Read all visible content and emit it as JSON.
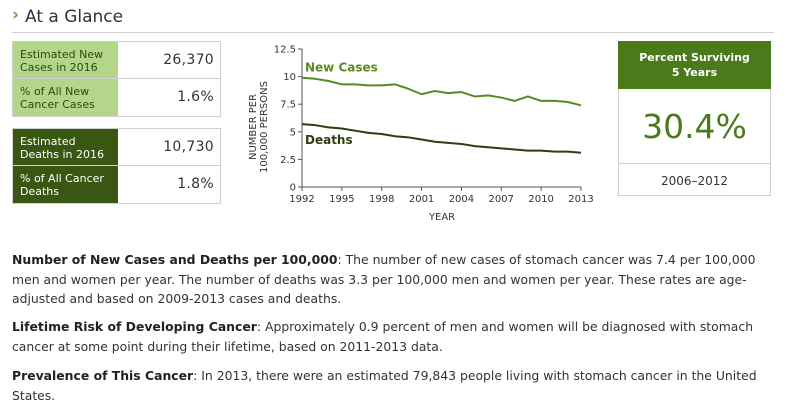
{
  "header": {
    "chevron": "›",
    "title": "At a Glance"
  },
  "stats": [
    {
      "label": "Estimated New Cases in 2016",
      "value": "26,370",
      "style": "green"
    },
    {
      "label": "% of All New Cancer Cases",
      "value": "1.6%",
      "style": "green"
    },
    {
      "label": "Estimated Deaths in 2016",
      "value": "10,730",
      "style": "dark"
    },
    {
      "label": "% of All Cancer Deaths",
      "value": "1.8%",
      "style": "dark"
    }
  ],
  "survival": {
    "title_line1": "Percent Surviving",
    "title_line2": "5 Years",
    "percent": "30.4%",
    "years": "2006–2012"
  },
  "colors": {
    "green_light": "#b3d68a",
    "green_dark": "#3a5613",
    "new_cases_line": "#5a8a22",
    "deaths_line": "#2e3d12",
    "accent": "#4b7a1b"
  },
  "chart_data": {
    "type": "line",
    "xlabel": "YEAR",
    "ylabel_line1": "NUMBER PER",
    "ylabel_line2": "100,000 PERSONS",
    "xlim": [
      1992,
      2013
    ],
    "ylim": [
      0,
      12.5
    ],
    "x_ticks": [
      1992,
      1995,
      1998,
      2001,
      2004,
      2007,
      2010,
      2013
    ],
    "y_ticks": [
      0,
      2.5,
      5,
      7.5,
      10,
      12.5
    ],
    "x": [
      1992,
      1993,
      1994,
      1995,
      1996,
      1997,
      1998,
      1999,
      2000,
      2001,
      2002,
      2003,
      2004,
      2005,
      2006,
      2007,
      2008,
      2009,
      2010,
      2011,
      2012,
      2013
    ],
    "series": [
      {
        "name": "New Cases",
        "values": [
          9.9,
          9.8,
          9.6,
          9.3,
          9.3,
          9.2,
          9.2,
          9.3,
          8.9,
          8.4,
          8.7,
          8.5,
          8.6,
          8.2,
          8.3,
          8.1,
          7.8,
          8.2,
          7.8,
          7.8,
          7.7,
          7.4
        ]
      },
      {
        "name": "Deaths",
        "values": [
          5.7,
          5.6,
          5.4,
          5.3,
          5.1,
          4.9,
          4.8,
          4.6,
          4.5,
          4.3,
          4.1,
          4.0,
          3.9,
          3.7,
          3.6,
          3.5,
          3.4,
          3.3,
          3.3,
          3.2,
          3.2,
          3.1
        ]
      }
    ]
  },
  "paragraphs": [
    {
      "heading": "Number of New Cases and Deaths per 100,000",
      "text": ": The number of new cases of stomach cancer was 7.4 per 100,000 men and women per year. The number of deaths was 3.3 per 100,000 men and women per year. These rates are age-adjusted and based on 2009-2013 cases and deaths."
    },
    {
      "heading": "Lifetime Risk of Developing Cancer",
      "text": ": Approximately 0.9 percent of men and women will be diagnosed with stomach cancer at some point during their lifetime, based on 2011-2013 data."
    },
    {
      "heading": "Prevalence of This Cancer",
      "text": ": In 2013, there were an estimated 79,843 people living with stomach cancer in the United States."
    }
  ]
}
